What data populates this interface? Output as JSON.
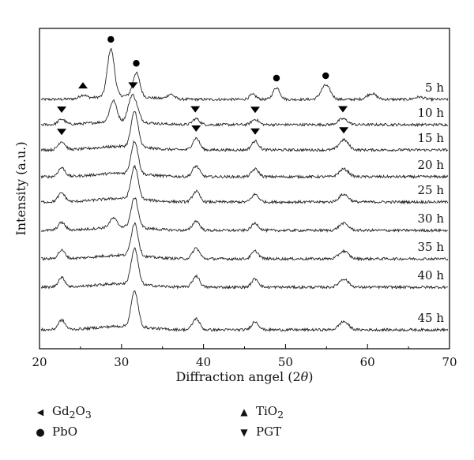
{
  "chart_data": {
    "type": "line",
    "xlabel_pre": "Diffraction angel (2",
    "xlabel_theta": "θ",
    "xlabel_post": ")",
    "ylabel": "Intensity (a.u.)",
    "xlim": [
      20,
      70
    ],
    "xticks": [
      "20",
      "30",
      "40",
      "50",
      "60",
      "70"
    ],
    "grid": false,
    "line_color": "#222222",
    "series": [
      {
        "name": "5 h",
        "peaks": [
          [
            25.3,
            0.6
          ],
          [
            28.7,
            8.0
          ],
          [
            31.8,
            4.0
          ],
          [
            36.0,
            0.8
          ],
          [
            46.0,
            0.8
          ],
          [
            48.9,
            2.0
          ],
          [
            54.9,
            2.4
          ],
          [
            60.5,
            1.0
          ],
          [
            66.3,
            0.4
          ]
        ]
      },
      {
        "name": "10 h",
        "peaks": [
          [
            22.7,
            0.9
          ],
          [
            29.0,
            3.5
          ],
          [
            31.2,
            3.6
          ],
          [
            31.8,
            2.0
          ],
          [
            39.1,
            1.0
          ],
          [
            46.3,
            0.9
          ],
          [
            57.0,
            1.0
          ]
        ]
      },
      {
        "name": "15 h",
        "peaks": [
          [
            22.7,
            1.4
          ],
          [
            31.6,
            6.0
          ],
          [
            39.1,
            2.0
          ],
          [
            46.3,
            1.5
          ],
          [
            57.1,
            1.7
          ]
        ]
      },
      {
        "name": "20 h",
        "peaks": [
          [
            22.7,
            1.5
          ],
          [
            31.6,
            5.5
          ],
          [
            39.1,
            1.8
          ],
          [
            46.3,
            1.3
          ],
          [
            57.1,
            1.3
          ]
        ]
      },
      {
        "name": "25 h",
        "peaks": [
          [
            22.7,
            1.5
          ],
          [
            31.6,
            5.5
          ],
          [
            39.1,
            1.8
          ],
          [
            46.3,
            1.3
          ],
          [
            57.1,
            1.3
          ]
        ]
      },
      {
        "name": "30 h",
        "peaks": [
          [
            22.7,
            1.3
          ],
          [
            29.0,
            1.5
          ],
          [
            31.6,
            5.0
          ],
          [
            39.1,
            1.6
          ],
          [
            46.3,
            1.2
          ],
          [
            57.1,
            1.2
          ]
        ]
      },
      {
        "name": "35 h",
        "peaks": [
          [
            22.7,
            1.4
          ],
          [
            31.6,
            5.5
          ],
          [
            39.1,
            1.8
          ],
          [
            46.3,
            1.3
          ],
          [
            57.1,
            1.3
          ]
        ]
      },
      {
        "name": "40 h",
        "peaks": [
          [
            22.7,
            1.6
          ],
          [
            31.6,
            6.0
          ],
          [
            39.1,
            1.9
          ],
          [
            46.3,
            1.4
          ],
          [
            57.1,
            1.4
          ]
        ]
      },
      {
        "name": "45 h",
        "peaks": [
          [
            22.7,
            1.6
          ],
          [
            31.6,
            6.0
          ],
          [
            39.1,
            1.9
          ],
          [
            46.3,
            1.4
          ],
          [
            57.1,
            1.4
          ]
        ]
      }
    ],
    "markers": [
      {
        "type": "triangle-up",
        "series": "5 h",
        "x": 25.3
      },
      {
        "type": "circle",
        "series": "5 h",
        "x": 28.7
      },
      {
        "type": "circle",
        "series": "5 h",
        "x": 31.8
      },
      {
        "type": "circle",
        "series": "5 h",
        "x": 48.9
      },
      {
        "type": "circle",
        "series": "5 h",
        "x": 54.9
      },
      {
        "type": "triangle-down",
        "series": "10 h",
        "x": 22.7
      },
      {
        "type": "triangle-down",
        "series": "10 h",
        "x": 31.4
      },
      {
        "type": "triangle-down",
        "series": "10 h",
        "x": 39.0
      },
      {
        "type": "triangle-down",
        "series": "10 h",
        "x": 46.3
      },
      {
        "type": "triangle-down",
        "series": "10 h",
        "x": 57.0
      },
      {
        "type": "triangle-down",
        "series": "15 h",
        "x": 22.7
      },
      {
        "type": "triangle-down",
        "series": "15 h",
        "x": 39.1
      },
      {
        "type": "triangle-down",
        "series": "15 h",
        "x": 46.3
      },
      {
        "type": "triangle-down",
        "series": "15 h",
        "x": 57.1
      }
    ]
  },
  "legend": [
    {
      "symbol": "triangle-left",
      "glyph": "◀",
      "label": "Gd",
      "sub1": "2",
      "mid": "O",
      "sub2": "3"
    },
    {
      "symbol": "circle",
      "glyph": "●",
      "label": "PbO",
      "sub1": "",
      "mid": "",
      "sub2": ""
    },
    {
      "symbol": "triangle-up",
      "glyph": "▲",
      "label": "TiO",
      "sub1": "2",
      "mid": "",
      "sub2": ""
    },
    {
      "symbol": "triangle-down",
      "glyph": "▼",
      "label": "PGT",
      "sub1": "",
      "mid": "",
      "sub2": ""
    }
  ]
}
